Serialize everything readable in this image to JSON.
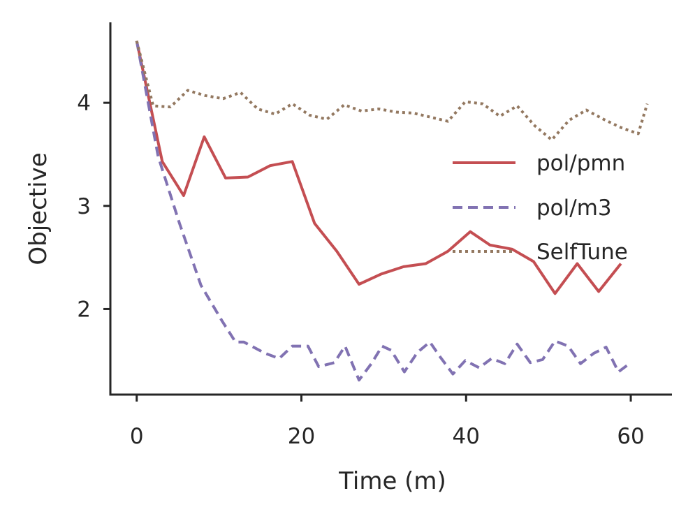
{
  "chart_data": {
    "type": "line",
    "title": "",
    "xlabel": "Time (m)",
    "ylabel": "Objective",
    "xlim": [
      -3.2,
      65
    ],
    "ylim": [
      1.17,
      4.78
    ],
    "xticks": [
      0,
      20,
      40,
      60
    ],
    "yticks": [
      2,
      3,
      4
    ],
    "grid": false,
    "legend_position": "center-right",
    "series": [
      {
        "name": "pol/pmn",
        "color": "#c44e52",
        "style": "solid",
        "x": [
          0,
          3.1,
          5.7,
          8.2,
          10.8,
          13.5,
          16.2,
          18.9,
          21.6,
          24.3,
          27.0,
          29.7,
          32.4,
          35.1,
          37.8,
          40.5,
          42.9,
          45.6,
          48.2,
          50.8,
          53.5,
          56.1,
          58.8
        ],
        "y": [
          4.6,
          3.43,
          3.1,
          3.67,
          3.27,
          3.28,
          3.39,
          3.43,
          2.83,
          2.56,
          2.24,
          2.34,
          2.41,
          2.44,
          2.56,
          2.75,
          2.62,
          2.58,
          2.46,
          2.15,
          2.44,
          2.17,
          2.44
        ]
      },
      {
        "name": "pol/m3",
        "color": "#8172b2",
        "style": "dashed",
        "x": [
          0,
          2.6,
          5.2,
          7.8,
          10.4,
          12.0,
          13.0,
          15.6,
          17.3,
          18.9,
          20.8,
          22.1,
          24.0,
          25.3,
          27.0,
          28.5,
          29.8,
          30.9,
          32.5,
          34.1,
          35.6,
          36.9,
          38.4,
          39.9,
          41.6,
          43.1,
          44.7,
          46.2,
          47.8,
          49.3,
          50.8,
          52.4,
          53.9,
          55.5,
          57.0,
          58.5,
          60.0
        ],
        "y": [
          4.6,
          3.48,
          2.83,
          2.23,
          1.88,
          1.68,
          1.68,
          1.57,
          1.52,
          1.64,
          1.64,
          1.44,
          1.48,
          1.64,
          1.31,
          1.47,
          1.64,
          1.6,
          1.39,
          1.58,
          1.68,
          1.53,
          1.37,
          1.5,
          1.43,
          1.52,
          1.47,
          1.66,
          1.48,
          1.51,
          1.69,
          1.64,
          1.47,
          1.57,
          1.63,
          1.39,
          1.48
        ]
      },
      {
        "name": "SelfTune",
        "color": "#937860",
        "style": "dotted",
        "x": [
          0,
          2.0,
          4.1,
          6.2,
          8.3,
          10.5,
          12.6,
          14.7,
          16.8,
          18.9,
          21.0,
          23.1,
          25.2,
          27.3,
          29.4,
          31.5,
          33.6,
          35.7,
          37.8,
          39.9,
          42.0,
          44.1,
          46.2,
          48.3,
          50.4,
          52.5,
          54.6,
          56.7,
          58.8,
          60.9,
          62.0
        ],
        "y": [
          4.6,
          3.97,
          3.96,
          4.12,
          4.07,
          4.04,
          4.1,
          3.94,
          3.89,
          3.99,
          3.88,
          3.84,
          3.98,
          3.92,
          3.94,
          3.91,
          3.9,
          3.86,
          3.82,
          4.01,
          3.99,
          3.87,
          3.97,
          3.78,
          3.64,
          3.83,
          3.93,
          3.84,
          3.76,
          3.7,
          3.99
        ]
      }
    ]
  }
}
